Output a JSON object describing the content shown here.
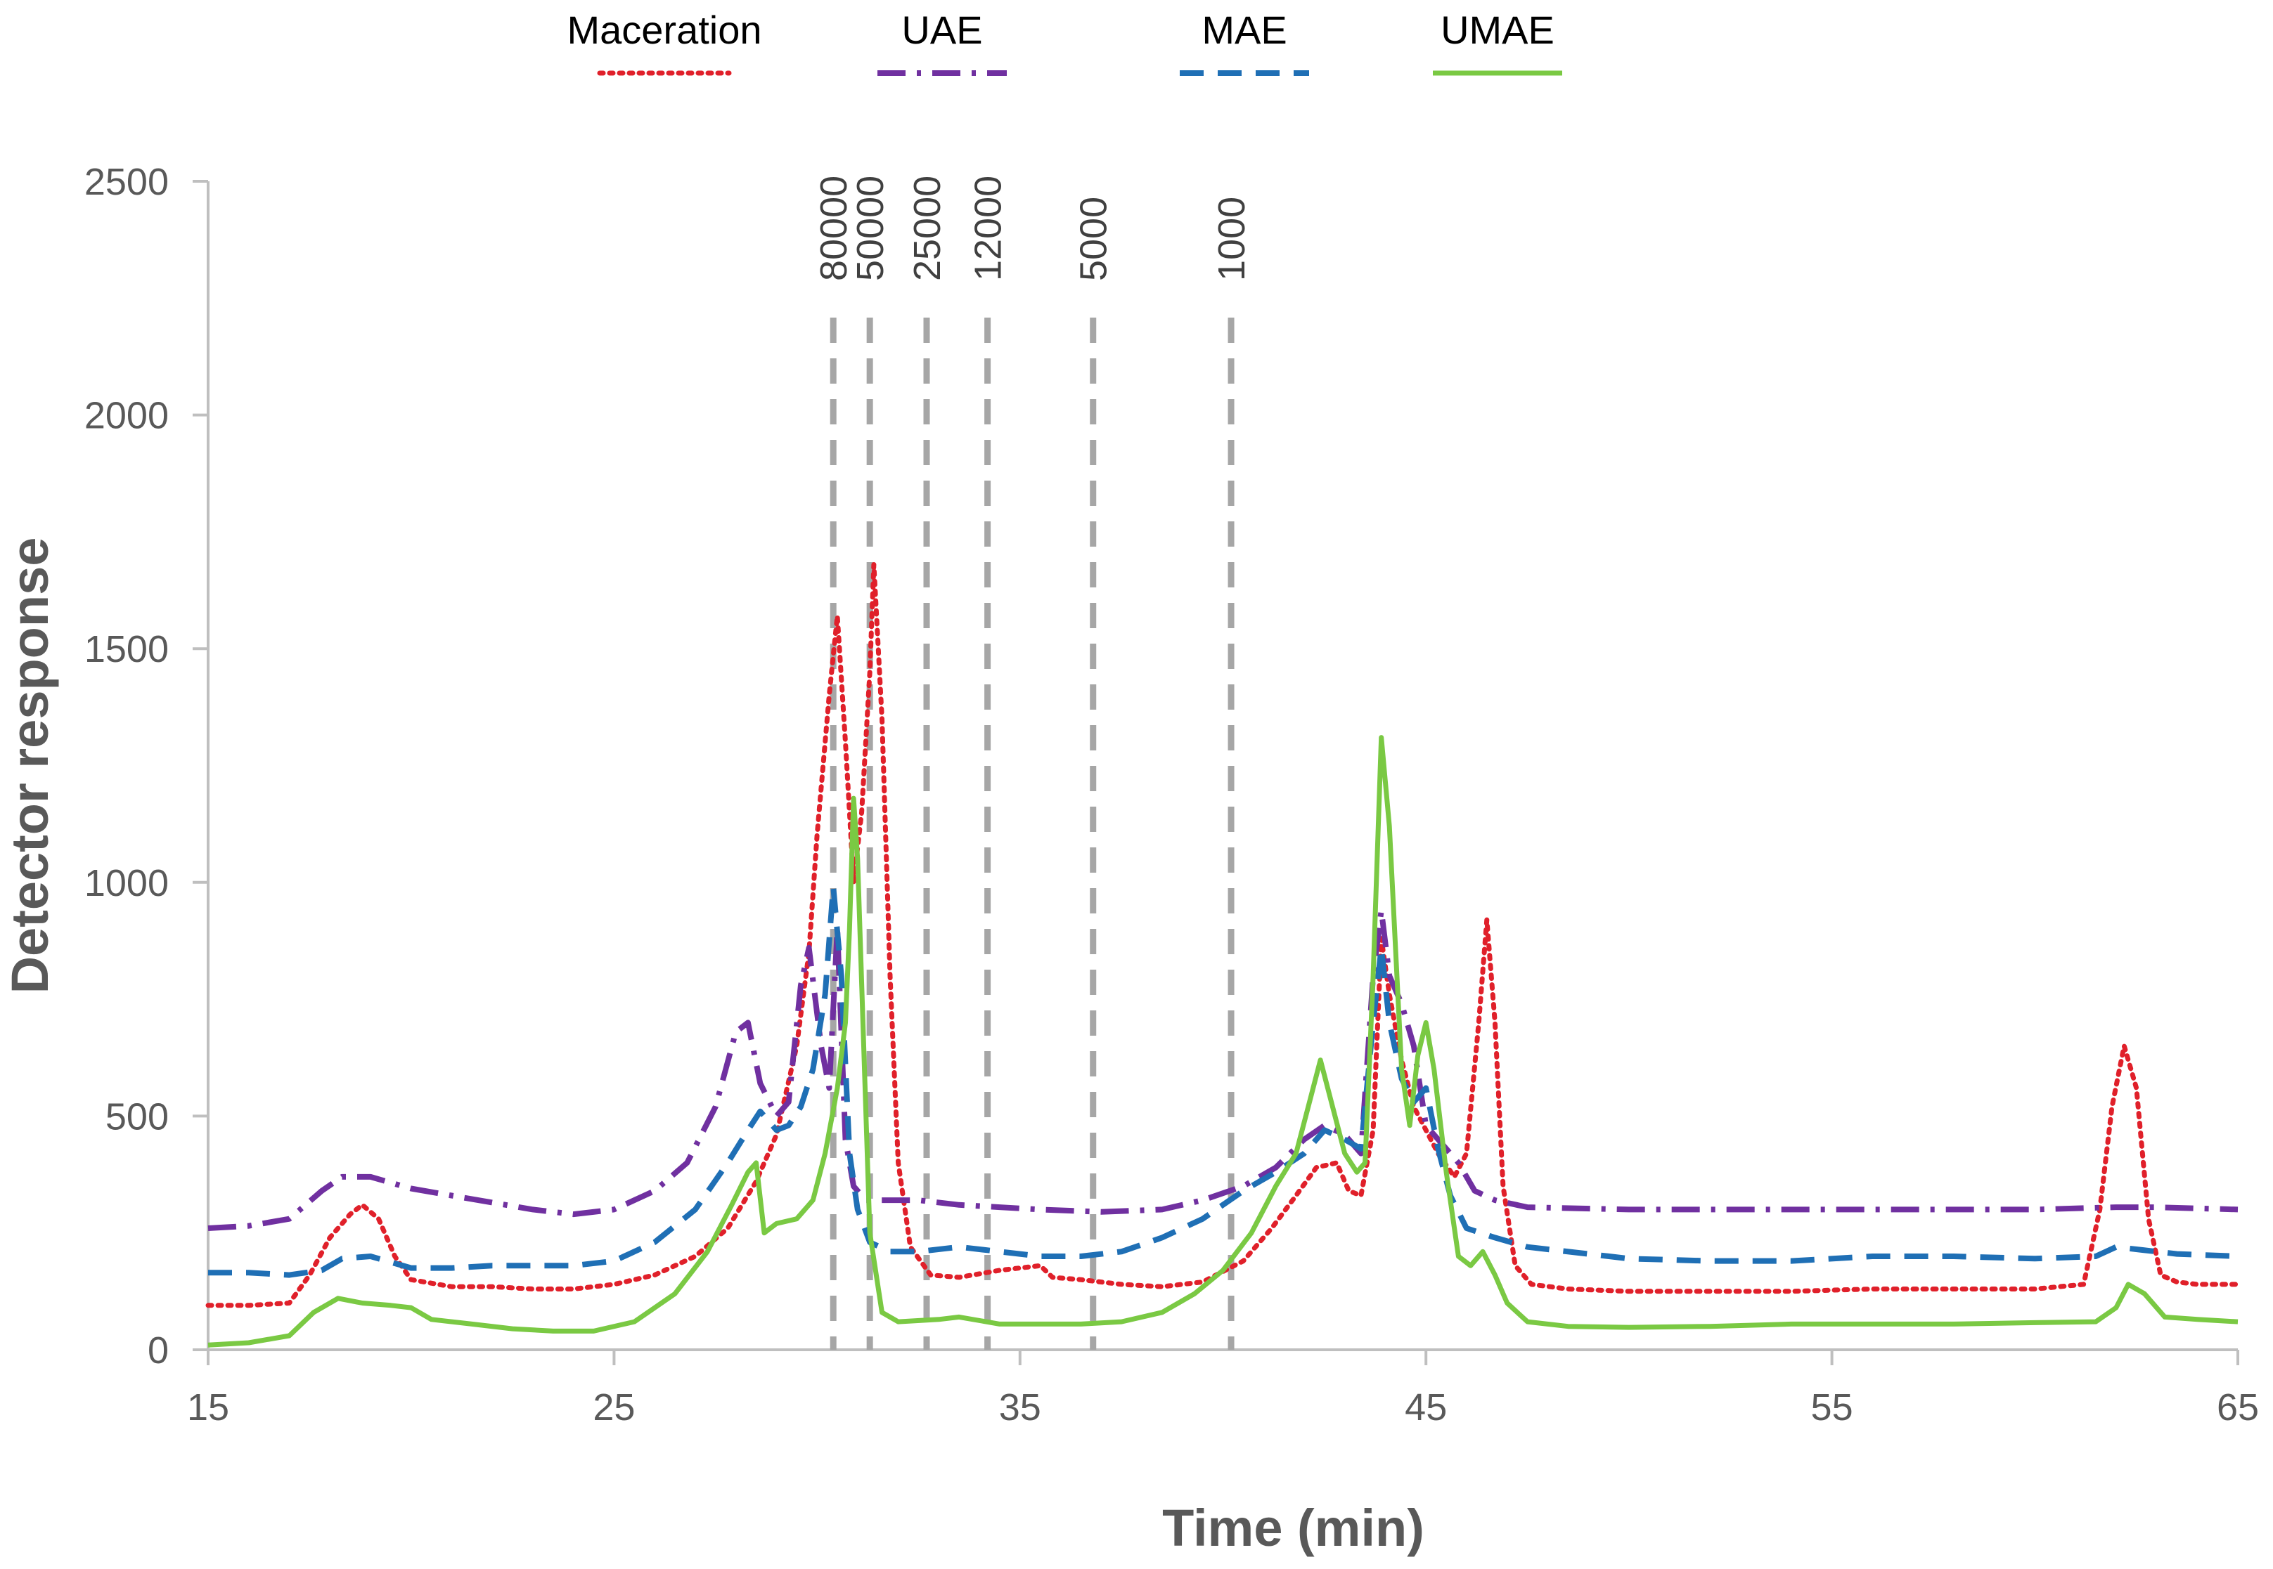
{
  "chart_data": {
    "type": "line",
    "title": "",
    "xlabel": "Time (min)",
    "ylabel": "Detector response",
    "xlim": [
      15,
      65
    ],
    "ylim": [
      0,
      2500
    ],
    "x_ticks": [
      15,
      25,
      35,
      45,
      55,
      65
    ],
    "y_ticks": [
      0,
      500,
      1000,
      1500,
      2000,
      2500
    ],
    "grid": false,
    "legend_position": "top",
    "molecular_weight_markers": [
      {
        "label": "80000",
        "time": 30.4
      },
      {
        "label": "50000",
        "time": 31.3
      },
      {
        "label": "25000",
        "time": 32.7
      },
      {
        "label": "12000",
        "time": 34.2
      },
      {
        "label": "5000",
        "time": 36.8
      },
      {
        "label": "1000",
        "time": 40.2
      }
    ],
    "series": [
      {
        "name": "Maceration",
        "color": "#E0202A",
        "style": "dotted",
        "points": [
          [
            15,
            95
          ],
          [
            16,
            95
          ],
          [
            17,
            100
          ],
          [
            17.5,
            160
          ],
          [
            18,
            240
          ],
          [
            18.5,
            290
          ],
          [
            18.8,
            310
          ],
          [
            19.2,
            280
          ],
          [
            19.6,
            200
          ],
          [
            20,
            150
          ],
          [
            21,
            135
          ],
          [
            22,
            135
          ],
          [
            23,
            130
          ],
          [
            24,
            130
          ],
          [
            25,
            140
          ],
          [
            26,
            160
          ],
          [
            27,
            200
          ],
          [
            27.8,
            260
          ],
          [
            28.5,
            360
          ],
          [
            29,
            460
          ],
          [
            29.5,
            650
          ],
          [
            29.8,
            850
          ],
          [
            30,
            1100
          ],
          [
            30.3,
            1400
          ],
          [
            30.5,
            1570
          ],
          [
            30.7,
            1300
          ],
          [
            30.9,
            1000
          ],
          [
            31.1,
            1150
          ],
          [
            31.3,
            1450
          ],
          [
            31.4,
            1680
          ],
          [
            31.6,
            1350
          ],
          [
            31.8,
            800
          ],
          [
            32,
            400
          ],
          [
            32.3,
            220
          ],
          [
            32.8,
            160
          ],
          [
            33.5,
            155
          ],
          [
            34.5,
            170
          ],
          [
            35.5,
            180
          ],
          [
            35.8,
            155
          ],
          [
            36.5,
            150
          ],
          [
            37.5,
            140
          ],
          [
            38.5,
            135
          ],
          [
            39.5,
            145
          ],
          [
            40.5,
            190
          ],
          [
            41.2,
            260
          ],
          [
            41.8,
            330
          ],
          [
            42.3,
            390
          ],
          [
            42.8,
            400
          ],
          [
            43.1,
            340
          ],
          [
            43.4,
            330
          ],
          [
            43.7,
            470
          ],
          [
            43.9,
            880
          ],
          [
            44.1,
            760
          ],
          [
            44.4,
            620
          ],
          [
            44.7,
            520
          ],
          [
            45,
            470
          ],
          [
            45.3,
            420
          ],
          [
            45.7,
            370
          ],
          [
            46,
            420
          ],
          [
            46.3,
            700
          ],
          [
            46.5,
            920
          ],
          [
            46.7,
            700
          ],
          [
            46.9,
            350
          ],
          [
            47.2,
            180
          ],
          [
            47.6,
            140
          ],
          [
            48.5,
            130
          ],
          [
            50,
            125
          ],
          [
            52,
            125
          ],
          [
            54,
            125
          ],
          [
            56,
            130
          ],
          [
            58,
            130
          ],
          [
            60,
            130
          ],
          [
            61.2,
            140
          ],
          [
            61.6,
            300
          ],
          [
            61.9,
            520
          ],
          [
            62.2,
            650
          ],
          [
            62.5,
            560
          ],
          [
            62.8,
            280
          ],
          [
            63.1,
            160
          ],
          [
            63.5,
            145
          ],
          [
            64,
            140
          ],
          [
            65,
            140
          ]
        ]
      },
      {
        "name": "UAE",
        "color": "#7030A0",
        "style": "dash-dot",
        "points": [
          [
            15,
            260
          ],
          [
            16,
            265
          ],
          [
            17,
            280
          ],
          [
            17.8,
            340
          ],
          [
            18.3,
            370
          ],
          [
            19,
            370
          ],
          [
            20,
            345
          ],
          [
            21,
            330
          ],
          [
            22,
            315
          ],
          [
            23,
            300
          ],
          [
            24,
            290
          ],
          [
            25,
            300
          ],
          [
            26,
            340
          ],
          [
            26.8,
            400
          ],
          [
            27.5,
            520
          ],
          [
            28,
            680
          ],
          [
            28.3,
            700
          ],
          [
            28.6,
            570
          ],
          [
            29,
            500
          ],
          [
            29.3,
            530
          ],
          [
            29.6,
            780
          ],
          [
            29.8,
            860
          ],
          [
            30.1,
            650
          ],
          [
            30.3,
            560
          ],
          [
            30.5,
            900
          ],
          [
            30.7,
            450
          ],
          [
            30.9,
            350
          ],
          [
            31.2,
            320
          ],
          [
            31.6,
            320
          ],
          [
            32.5,
            320
          ],
          [
            33.5,
            310
          ],
          [
            34.5,
            305
          ],
          [
            35.5,
            300
          ],
          [
            37,
            295
          ],
          [
            38.5,
            300
          ],
          [
            39.5,
            320
          ],
          [
            40.5,
            350
          ],
          [
            41.3,
            390
          ],
          [
            42,
            450
          ],
          [
            42.5,
            480
          ],
          [
            43,
            460
          ],
          [
            43.4,
            420
          ],
          [
            43.7,
            800
          ],
          [
            43.9,
            940
          ],
          [
            44.1,
            800
          ],
          [
            44.4,
            740
          ],
          [
            44.7,
            650
          ],
          [
            45,
            480
          ],
          [
            45.4,
            440
          ],
          [
            45.8,
            400
          ],
          [
            46.2,
            340
          ],
          [
            46.7,
            320
          ],
          [
            47.5,
            305
          ],
          [
            50,
            300
          ],
          [
            52,
            300
          ],
          [
            55,
            300
          ],
          [
            58,
            300
          ],
          [
            60,
            300
          ],
          [
            62,
            305
          ],
          [
            63,
            305
          ],
          [
            65,
            300
          ]
        ]
      },
      {
        "name": "MAE",
        "color": "#1F6FB5",
        "style": "dashed",
        "points": [
          [
            15,
            165
          ],
          [
            16,
            165
          ],
          [
            17,
            160
          ],
          [
            17.8,
            170
          ],
          [
            18.3,
            195
          ],
          [
            19,
            200
          ],
          [
            20,
            175
          ],
          [
            21,
            175
          ],
          [
            22,
            180
          ],
          [
            23,
            180
          ],
          [
            24,
            180
          ],
          [
            25,
            190
          ],
          [
            26,
            230
          ],
          [
            27,
            300
          ],
          [
            27.8,
            400
          ],
          [
            28.3,
            470
          ],
          [
            28.6,
            510
          ],
          [
            29,
            470
          ],
          [
            29.3,
            480
          ],
          [
            29.6,
            520
          ],
          [
            29.9,
            600
          ],
          [
            30.2,
            760
          ],
          [
            30.4,
            990
          ],
          [
            30.6,
            800
          ],
          [
            30.8,
            420
          ],
          [
            31,
            300
          ],
          [
            31.3,
            230
          ],
          [
            31.8,
            210
          ],
          [
            32.5,
            210
          ],
          [
            33.5,
            220
          ],
          [
            34.5,
            210
          ],
          [
            35.5,
            200
          ],
          [
            36.5,
            200
          ],
          [
            37.5,
            210
          ],
          [
            38.5,
            240
          ],
          [
            39.5,
            280
          ],
          [
            40.5,
            340
          ],
          [
            41.3,
            380
          ],
          [
            42,
            420
          ],
          [
            42.5,
            470
          ],
          [
            43,
            450
          ],
          [
            43.4,
            430
          ],
          [
            43.7,
            700
          ],
          [
            43.9,
            860
          ],
          [
            44.1,
            700
          ],
          [
            44.4,
            580
          ],
          [
            44.7,
            530
          ],
          [
            45,
            560
          ],
          [
            45.3,
            430
          ],
          [
            45.6,
            330
          ],
          [
            46,
            260
          ],
          [
            46.7,
            240
          ],
          [
            47.5,
            220
          ],
          [
            49,
            205
          ],
          [
            50,
            195
          ],
          [
            52,
            190
          ],
          [
            54,
            190
          ],
          [
            56,
            200
          ],
          [
            58,
            200
          ],
          [
            60,
            195
          ],
          [
            61.5,
            200
          ],
          [
            62,
            220
          ],
          [
            62.5,
            215
          ],
          [
            63.5,
            205
          ],
          [
            65,
            200
          ]
        ]
      },
      {
        "name": "UMAE",
        "color": "#7AC943",
        "style": "solid",
        "points": [
          [
            15,
            10
          ],
          [
            16,
            15
          ],
          [
            17,
            30
          ],
          [
            17.6,
            80
          ],
          [
            18.2,
            110
          ],
          [
            18.8,
            100
          ],
          [
            19.5,
            95
          ],
          [
            20,
            90
          ],
          [
            20.5,
            65
          ],
          [
            21.5,
            55
          ],
          [
            22.5,
            45
          ],
          [
            23.5,
            40
          ],
          [
            24.5,
            40
          ],
          [
            25.5,
            60
          ],
          [
            26.5,
            120
          ],
          [
            27.3,
            210
          ],
          [
            27.9,
            310
          ],
          [
            28.3,
            380
          ],
          [
            28.5,
            400
          ],
          [
            28.7,
            250
          ],
          [
            29,
            270
          ],
          [
            29.5,
            280
          ],
          [
            29.9,
            320
          ],
          [
            30.2,
            420
          ],
          [
            30.5,
            560
          ],
          [
            30.7,
            700
          ],
          [
            30.8,
            900
          ],
          [
            30.9,
            1180
          ],
          [
            31,
            1050
          ],
          [
            31.15,
            650
          ],
          [
            31.3,
            250
          ],
          [
            31.6,
            80
          ],
          [
            32,
            60
          ],
          [
            33,
            65
          ],
          [
            33.5,
            70
          ],
          [
            34.5,
            55
          ],
          [
            35.5,
            55
          ],
          [
            36.5,
            55
          ],
          [
            37.5,
            60
          ],
          [
            38.5,
            80
          ],
          [
            39.3,
            120
          ],
          [
            40,
            170
          ],
          [
            40.7,
            250
          ],
          [
            41.3,
            350
          ],
          [
            41.8,
            420
          ],
          [
            42.1,
            520
          ],
          [
            42.4,
            620
          ],
          [
            42.7,
            520
          ],
          [
            43,
            420
          ],
          [
            43.3,
            380
          ],
          [
            43.5,
            400
          ],
          [
            43.7,
            800
          ],
          [
            43.9,
            1310
          ],
          [
            44.1,
            1120
          ],
          [
            44.4,
            600
          ],
          [
            44.6,
            480
          ],
          [
            44.8,
            630
          ],
          [
            45,
            700
          ],
          [
            45.2,
            600
          ],
          [
            45.5,
            380
          ],
          [
            45.8,
            200
          ],
          [
            46.1,
            180
          ],
          [
            46.4,
            210
          ],
          [
            46.7,
            160
          ],
          [
            47,
            100
          ],
          [
            47.5,
            60
          ],
          [
            48.5,
            50
          ],
          [
            50,
            48
          ],
          [
            52,
            50
          ],
          [
            54,
            55
          ],
          [
            56,
            55
          ],
          [
            58,
            55
          ],
          [
            60,
            58
          ],
          [
            61.5,
            60
          ],
          [
            62,
            90
          ],
          [
            62.3,
            140
          ],
          [
            62.7,
            120
          ],
          [
            63.2,
            70
          ],
          [
            64,
            65
          ],
          [
            65,
            60
          ]
        ]
      }
    ]
  }
}
